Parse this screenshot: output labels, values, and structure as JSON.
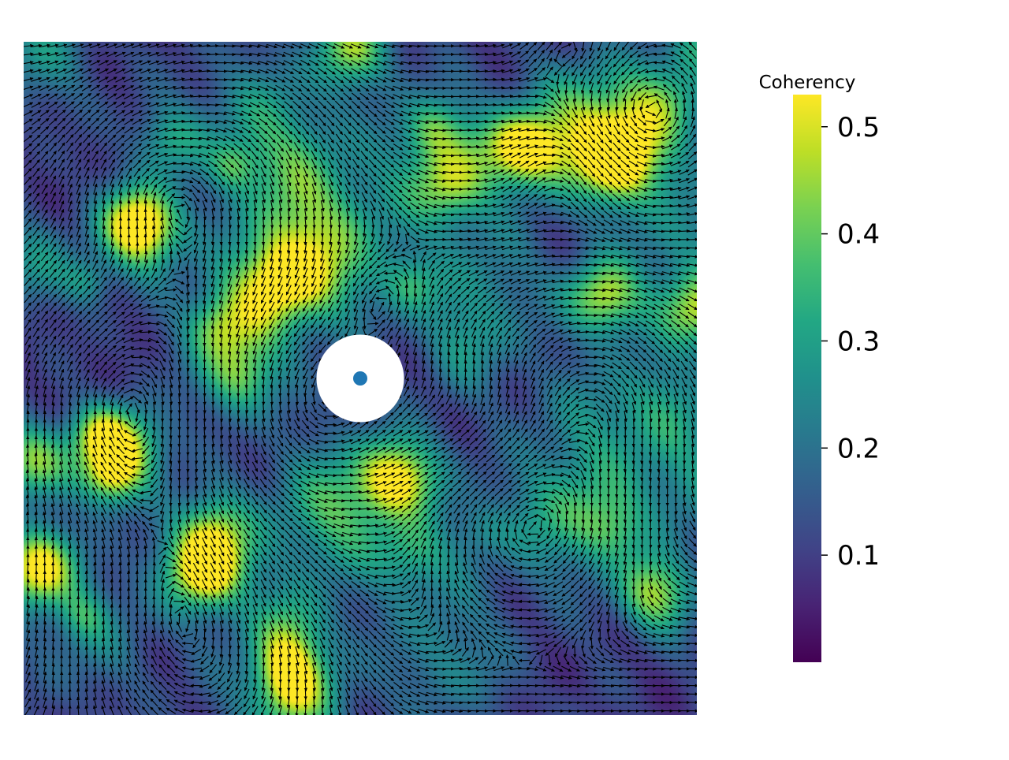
{
  "chart_data": {
    "type": "heatmap",
    "title": "",
    "xlabel": "",
    "ylabel": "",
    "axes_visible": false,
    "description": "Coherency field (viridis colormap) overlaid with a dense black quiver field of local orientation vectors; a white circular mask around the centre with a single blue point marker.",
    "colormap": "viridis",
    "colorbar": {
      "label": "Coherency",
      "range": [
        0.0,
        0.53
      ],
      "ticks": [
        0.1,
        0.2,
        0.3,
        0.4,
        0.5
      ],
      "tick_labels": [
        "0.1",
        "0.2",
        "0.3",
        "0.4",
        "0.5"
      ]
    },
    "field": {
      "extent": [
        0,
        1,
        0,
        1
      ],
      "grid_size": 100,
      "high_coherency_spots": [
        {
          "x": 0.17,
          "y": 0.27,
          "value": 0.47
        },
        {
          "x": 0.74,
          "y": 0.16,
          "value": 0.52
        },
        {
          "x": 0.86,
          "y": 0.38,
          "value": 0.48
        },
        {
          "x": 0.94,
          "y": 0.82,
          "value": 0.47
        },
        {
          "x": 0.02,
          "y": 0.78,
          "value": 0.44
        },
        {
          "x": 0.01,
          "y": 0.62,
          "value": 0.42
        },
        {
          "x": 0.55,
          "y": 0.65,
          "value": 0.4
        },
        {
          "x": 0.28,
          "y": 0.72,
          "value": 0.35
        },
        {
          "x": 0.32,
          "y": 0.5,
          "value": 0.38
        },
        {
          "x": 0.16,
          "y": 0.6,
          "value": 0.4
        },
        {
          "x": 0.49,
          "y": 0.01,
          "value": 0.45
        },
        {
          "x": 1.0,
          "y": 0.4,
          "value": 0.45
        },
        {
          "x": 0.4,
          "y": 0.97,
          "value": 0.36
        },
        {
          "x": 0.88,
          "y": 0.18,
          "value": 0.36
        },
        {
          "x": 0.63,
          "y": 0.22,
          "value": 0.34
        },
        {
          "x": 0.27,
          "y": 0.79,
          "value": 0.33
        }
      ]
    },
    "mask": {
      "center": [
        0.5,
        0.5
      ],
      "radius": 0.065,
      "color": "#ffffff"
    },
    "marker": {
      "x": 0.5,
      "y": 0.5,
      "color": "#1f77b4"
    },
    "quiver": {
      "color": "#000000",
      "spacing": 0.0125
    }
  },
  "colors": {
    "background": "#ffffff",
    "marker": "#1f77b4",
    "arrows": "#000000"
  }
}
